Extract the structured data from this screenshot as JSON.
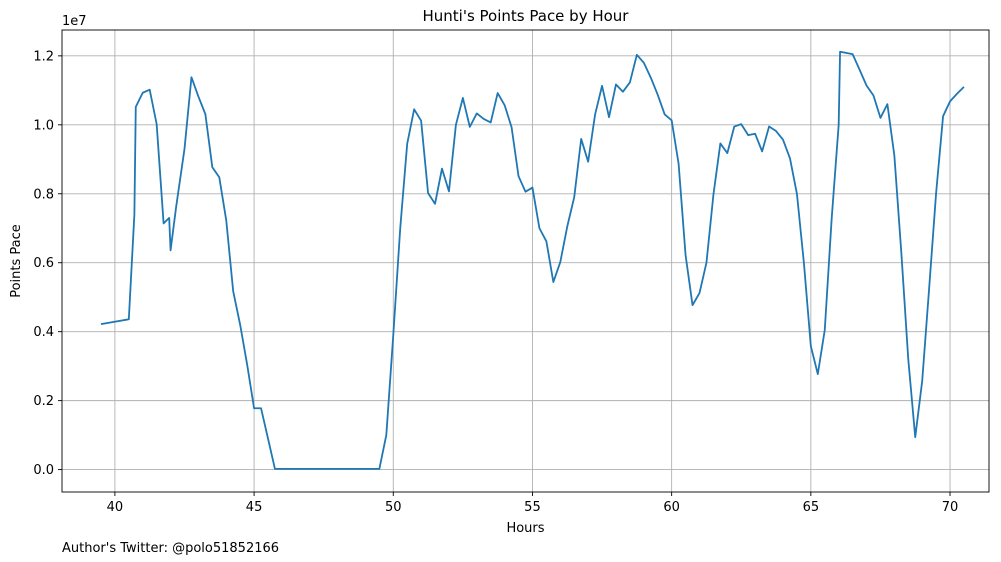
{
  "chart_data": {
    "type": "line",
    "title": "Hunti's Points Pace by Hour",
    "xlabel": "Hours",
    "ylabel": "Points Pace",
    "y_offset_label": "1e7",
    "xlim": [
      38.1,
      71.4
    ],
    "ylim": [
      -0.065,
      1.275
    ],
    "y_scale_note": "values in units of 1e7",
    "grid": true,
    "x_ticks": [
      40,
      45,
      50,
      55,
      60,
      65,
      70
    ],
    "x_tick_labels": [
      "40",
      "45",
      "50",
      "55",
      "60",
      "65",
      "70"
    ],
    "y_ticks": [
      0.0,
      0.2,
      0.4,
      0.6,
      0.8,
      1.0,
      1.2
    ],
    "y_tick_labels": [
      "0.0",
      "0.2",
      "0.4",
      "0.6",
      "0.8",
      "1.0",
      "1.2"
    ],
    "line_color": "#1f77b4",
    "series": [
      {
        "x": [
          39.5,
          40.5,
          40.7,
          40.75,
          41.0,
          41.25,
          41.5,
          41.75,
          41.95,
          42.0,
          42.2,
          42.5,
          42.75,
          43.0,
          43.25,
          43.5,
          43.75,
          44.0,
          44.25,
          44.5,
          44.75,
          45.0,
          45.25,
          45.5,
          45.75,
          46.0,
          46.5,
          47.0,
          47.5,
          48.0,
          48.5,
          49.0,
          49.25,
          49.5,
          49.75,
          50.0,
          50.25,
          50.5,
          50.75,
          51.0,
          51.25,
          51.5,
          51.75,
          52.0,
          52.25,
          52.5,
          52.75,
          53.0,
          53.25,
          53.5,
          53.75,
          54.0,
          54.25,
          54.5,
          54.75,
          55.0,
          55.25,
          55.5,
          55.75,
          56.0,
          56.25,
          56.5,
          56.75,
          57.0,
          57.25,
          57.5,
          57.75,
          58.0,
          58.25,
          58.5,
          58.75,
          59.0,
          59.25,
          59.5,
          59.75,
          60.0,
          60.25,
          60.5,
          60.75,
          61.0,
          61.25,
          61.5,
          61.75,
          62.0,
          62.25,
          62.5,
          62.75,
          63.0,
          63.25,
          63.5,
          63.75,
          64.0,
          64.25,
          64.5,
          64.75,
          65.0,
          65.25,
          65.5,
          65.75,
          66.0,
          66.05,
          66.5,
          66.75,
          67.0,
          67.25,
          67.5,
          67.75,
          68.0,
          68.25,
          68.5,
          68.75,
          69.0,
          69.25,
          69.5,
          69.75,
          70.0,
          70.25,
          70.5
        ],
        "y": [
          0.422,
          0.436,
          0.74,
          1.052,
          1.093,
          1.102,
          1.002,
          0.714,
          0.73,
          0.636,
          0.762,
          0.93,
          1.138,
          1.082,
          1.031,
          0.877,
          0.848,
          0.723,
          0.517,
          0.42,
          0.305,
          0.178,
          0.178,
          0.09,
          0.002,
          0.002,
          0.002,
          0.002,
          0.002,
          0.002,
          0.002,
          0.002,
          0.002,
          0.002,
          0.1,
          0.39,
          0.7,
          0.945,
          1.045,
          1.012,
          0.802,
          0.771,
          0.873,
          0.807,
          1.0,
          1.078,
          0.994,
          1.033,
          1.017,
          1.007,
          1.092,
          1.057,
          0.993,
          0.851,
          0.806,
          0.818,
          0.7,
          0.662,
          0.544,
          0.602,
          0.705,
          0.79,
          0.959,
          0.893,
          1.03,
          1.113,
          1.022,
          1.117,
          1.096,
          1.123,
          1.203,
          1.18,
          1.137,
          1.087,
          1.03,
          1.013,
          0.887,
          0.622,
          0.477,
          0.512,
          0.6,
          0.797,
          0.946,
          0.918,
          0.995,
          1.002,
          0.97,
          0.974,
          0.923,
          0.995,
          0.982,
          0.957,
          0.903,
          0.8,
          0.6,
          0.358,
          0.277,
          0.405,
          0.73,
          1.0,
          1.212,
          1.205,
          1.16,
          1.114,
          1.085,
          1.02,
          1.06,
          0.911,
          0.63,
          0.32,
          0.094,
          0.257,
          0.526,
          0.802,
          1.025,
          1.068,
          1.09,
          1.11
        ]
      }
    ]
  },
  "footer": {
    "text": "Author's Twitter: @polo51852166"
  }
}
